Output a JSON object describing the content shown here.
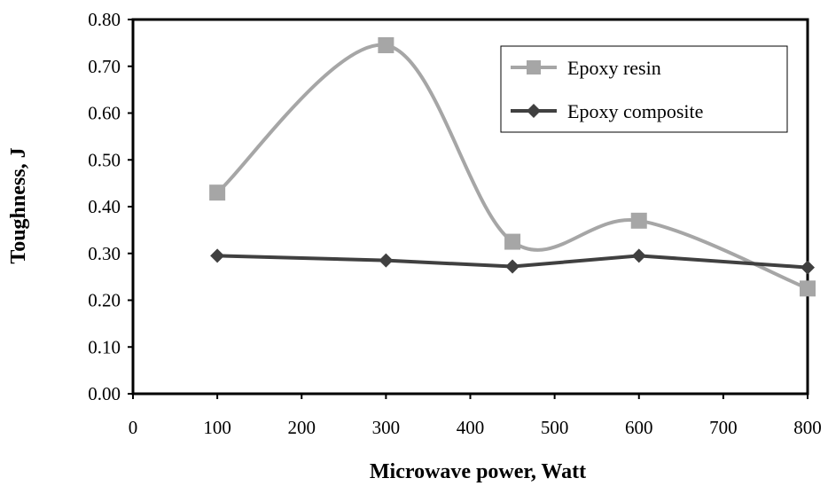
{
  "chart_data": {
    "type": "line",
    "title": "",
    "xlabel": "Microwave power, Watt",
    "ylabel": "Toughness, J",
    "xlim": [
      0,
      800
    ],
    "ylim": [
      0,
      0.8
    ],
    "x_ticks": [
      "0",
      "100",
      "200",
      "300",
      "400",
      "500",
      "600",
      "700",
      "800"
    ],
    "y_ticks": [
      "0.00",
      "0.10",
      "0.20",
      "0.30",
      "0.40",
      "0.50",
      "0.60",
      "0.70",
      "0.80"
    ],
    "grid": false,
    "legend_position": "top-right",
    "series": [
      {
        "name": "Epoxy resin",
        "color": "#a6a6a6",
        "marker": "square",
        "smooth": true,
        "x": [
          100,
          300,
          450,
          600,
          800
        ],
        "y": [
          0.43,
          0.745,
          0.325,
          0.37,
          0.225
        ]
      },
      {
        "name": "Epoxy composite",
        "color": "#404040",
        "marker": "diamond",
        "smooth": false,
        "x": [
          100,
          300,
          450,
          600,
          800
        ],
        "y": [
          0.295,
          0.285,
          0.272,
          0.295,
          0.27
        ]
      }
    ]
  }
}
